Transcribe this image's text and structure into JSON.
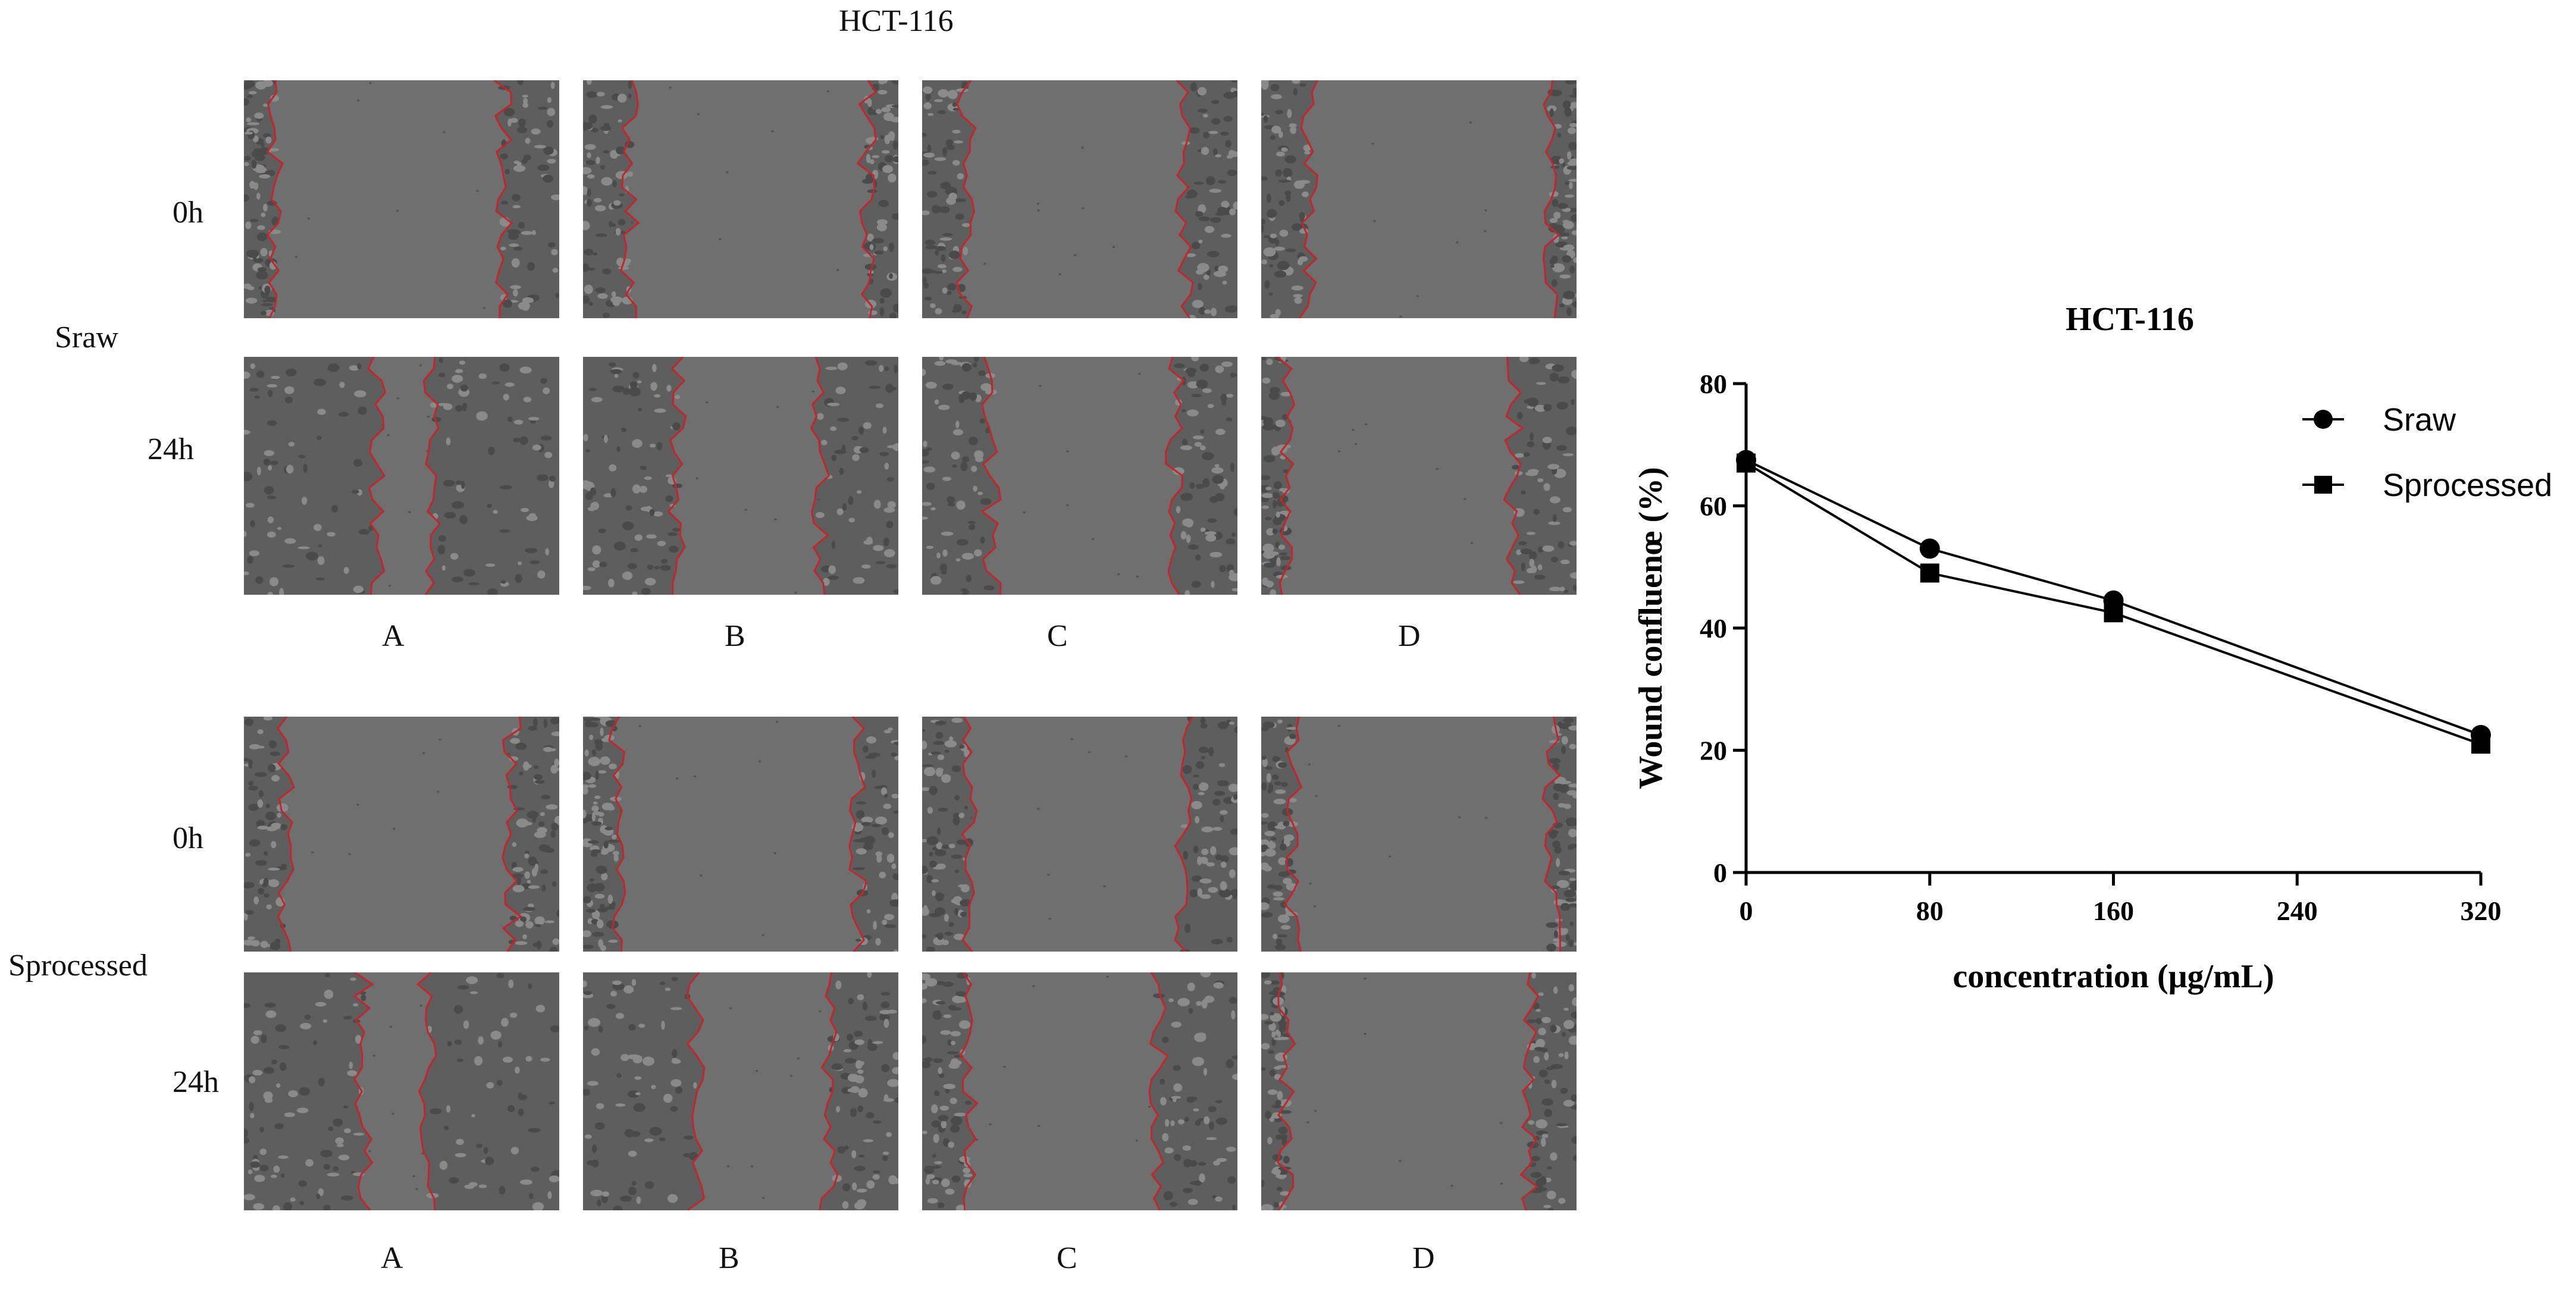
{
  "figure": {
    "top_title": "HCT-116",
    "groups": [
      {
        "label": "Sraw",
        "rows": [
          "0h",
          "24h"
        ],
        "columns": [
          "A",
          "B",
          "C",
          "D"
        ]
      },
      {
        "label": "Sprocessed",
        "rows": [
          "0h",
          "24h"
        ],
        "columns": [
          "A",
          "B",
          "C",
          "D"
        ]
      }
    ],
    "colors": {
      "wound_edge": "#c0262b",
      "cells": "#5f5f5f",
      "background": "#6e6e6e"
    }
  },
  "chart_data": {
    "type": "line",
    "title": "HCT-116",
    "xlabel": "concentration (μg/mL)",
    "ylabel": "Wound confluenœ (%)",
    "x": [
      0,
      80,
      160,
      320
    ],
    "xticks": [
      0,
      80,
      160,
      240,
      320
    ],
    "yticks": [
      0,
      20,
      40,
      60,
      80
    ],
    "xlim": [
      0,
      320
    ],
    "ylim": [
      0,
      80
    ],
    "legend_position": "top-right",
    "series": [
      {
        "name": "Sraw",
        "marker": "circle",
        "values": [
          67.5,
          53,
          44.5,
          22.5
        ],
        "color": "#000000"
      },
      {
        "name": "Sprocessed",
        "marker": "square",
        "values": [
          67,
          49,
          42.5,
          21
        ],
        "color": "#000000"
      }
    ]
  }
}
